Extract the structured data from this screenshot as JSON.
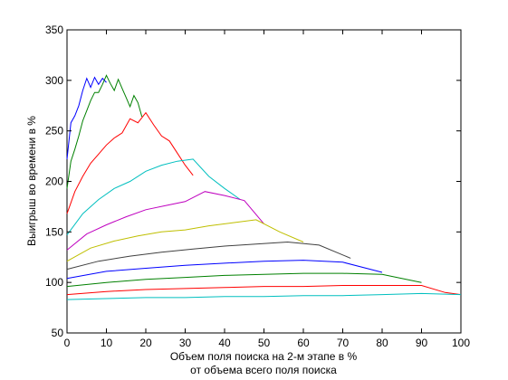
{
  "chart_data": {
    "type": "line",
    "title": "",
    "xlabel_lines": [
      "Объем поля поиска на 2-м этапе в %",
      "от объема всего поля поиска"
    ],
    "ylabel": "Выигрыш во времени в %",
    "xlim": [
      0,
      100
    ],
    "ylim": [
      50,
      350
    ],
    "x_ticks": [
      0,
      10,
      20,
      30,
      40,
      50,
      60,
      70,
      80,
      90,
      100
    ],
    "y_ticks": [
      50,
      100,
      150,
      200,
      250,
      300,
      350
    ],
    "grid": false,
    "legend": "none",
    "series": [
      {
        "color": "#0000ff",
        "x": [
          0,
          1,
          2,
          3,
          4,
          5,
          6,
          7,
          8,
          9,
          10
        ],
        "y": [
          222,
          258,
          265,
          275,
          290,
          302,
          293,
          303,
          296,
          302,
          298
        ]
      },
      {
        "color": "#008000",
        "x": [
          0,
          1,
          2,
          3,
          4,
          5,
          6,
          7,
          8,
          9,
          10,
          11,
          12,
          13,
          14,
          15,
          16,
          17,
          18,
          19
        ],
        "y": [
          193,
          220,
          232,
          245,
          260,
          270,
          280,
          288,
          288,
          296,
          305,
          297,
          290,
          301,
          292,
          283,
          274,
          285,
          278,
          264
        ]
      },
      {
        "color": "#ff0000",
        "x": [
          0,
          2,
          4,
          6,
          8,
          10,
          12,
          14,
          16,
          18,
          20,
          22,
          24,
          26,
          28,
          30,
          32
        ],
        "y": [
          168,
          190,
          205,
          218,
          227,
          236,
          243,
          248,
          262,
          258,
          268,
          256,
          245,
          240,
          228,
          216,
          206
        ]
      },
      {
        "color": "#00bfbf",
        "x": [
          0,
          4,
          8,
          12,
          16,
          20,
          24,
          28,
          32,
          36,
          40,
          44
        ],
        "y": [
          147,
          168,
          182,
          193,
          200,
          210,
          216,
          220,
          222,
          205,
          193,
          182
        ]
      },
      {
        "color": "#bf00bf",
        "x": [
          0,
          5,
          10,
          15,
          20,
          25,
          30,
          35,
          40,
          45,
          50
        ],
        "y": [
          132,
          148,
          157,
          165,
          172,
          176,
          180,
          190,
          186,
          181,
          158
        ]
      },
      {
        "color": "#bfbf00",
        "x": [
          0,
          6,
          12,
          18,
          24,
          30,
          36,
          42,
          48,
          54,
          60
        ],
        "y": [
          121,
          134,
          141,
          146,
          150,
          152,
          156,
          159,
          162,
          150,
          140
        ]
      },
      {
        "color": "#404040",
        "x": [
          0,
          8,
          16,
          24,
          32,
          40,
          48,
          56,
          64,
          72
        ],
        "y": [
          113,
          121,
          126,
          130,
          133,
          136,
          138,
          140,
          137,
          124
        ]
      },
      {
        "color": "#0000ff",
        "x": [
          0,
          10,
          20,
          30,
          40,
          50,
          60,
          70,
          80
        ],
        "y": [
          104,
          111,
          114,
          117,
          119,
          121,
          122,
          120,
          110
        ]
      },
      {
        "color": "#008000",
        "x": [
          0,
          10,
          20,
          30,
          40,
          50,
          60,
          70,
          80,
          90
        ],
        "y": [
          96,
          100,
          103,
          105,
          107,
          108,
          109,
          109,
          108,
          100
        ]
      },
      {
        "color": "#ff0000",
        "x": [
          0,
          10,
          20,
          30,
          40,
          50,
          60,
          70,
          80,
          90,
          96,
          100
        ],
        "y": [
          88,
          91,
          93,
          94,
          95,
          96,
          96,
          97,
          97,
          97,
          90,
          88
        ]
      },
      {
        "color": "#00bfbf",
        "x": [
          0,
          10,
          20,
          30,
          40,
          50,
          60,
          70,
          80,
          90,
          100
        ],
        "y": [
          83,
          84,
          85,
          85,
          86,
          86,
          87,
          87,
          88,
          89,
          88
        ]
      }
    ]
  }
}
